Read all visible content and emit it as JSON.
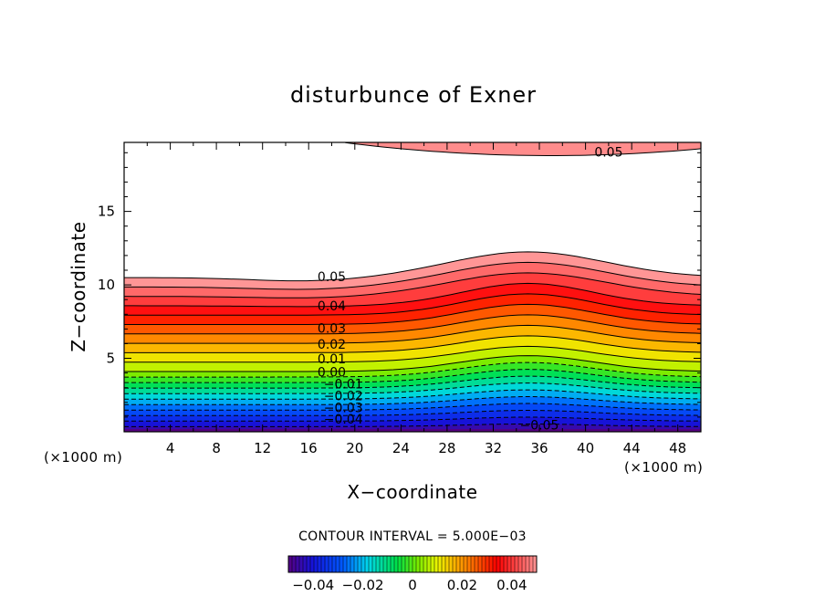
{
  "chart_data": {
    "type": "contour",
    "title": "disturbunce of Exner",
    "xlabel": "X−coordinate",
    "ylabel": "Z−coordinate",
    "x_unit_label": "(×1000 m)",
    "z_unit_label": "(×1000 m)",
    "xlim": [
      0,
      50
    ],
    "ylim": [
      0,
      19.7
    ],
    "x_ticks": [
      "4",
      "8",
      "12",
      "16",
      "20",
      "24",
      "28",
      "32",
      "36",
      "40",
      "44",
      "48"
    ],
    "x_tick_values": [
      4,
      8,
      12,
      16,
      20,
      24,
      28,
      32,
      36,
      40,
      44,
      48
    ],
    "y_ticks": [
      "5",
      "10",
      "15"
    ],
    "y_tick_values": [
      5,
      10,
      15
    ],
    "contour_interval_text": "CONTOUR INTERVAL = 5.000E−03",
    "contour_interval": 0.005,
    "negative_contours_dashed": true,
    "colorbar": {
      "min": -0.05,
      "max": 0.05,
      "tick_labels": [
        "−0.04",
        "−0.02",
        "0",
        "0.02",
        "0.04"
      ],
      "tick_values": [
        -0.04,
        -0.02,
        0,
        0.02,
        0.04
      ]
    },
    "contour_labels": [
      {
        "text": "0.05",
        "x": 18,
        "z": 10.5
      },
      {
        "text": "0.04",
        "x": 18,
        "z": 8.5
      },
      {
        "text": "0.03",
        "x": 18,
        "z": 7.0
      },
      {
        "text": "0.02",
        "x": 18,
        "z": 5.9
      },
      {
        "text": "0.01",
        "x": 18,
        "z": 4.9
      },
      {
        "text": "0.00",
        "x": 18,
        "z": 4.0
      },
      {
        "text": "−0.01",
        "x": 19,
        "z": 3.2
      },
      {
        "text": "−0.02",
        "x": 19,
        "z": 2.4
      },
      {
        "text": "−0.03",
        "x": 19,
        "z": 1.6
      },
      {
        "text": "−0.04",
        "x": 19,
        "z": 0.8
      },
      {
        "text": "−0.05",
        "x": 36,
        "z": 0.4
      },
      {
        "text": "0.05",
        "x": 42,
        "z": 19.0
      }
    ]
  }
}
